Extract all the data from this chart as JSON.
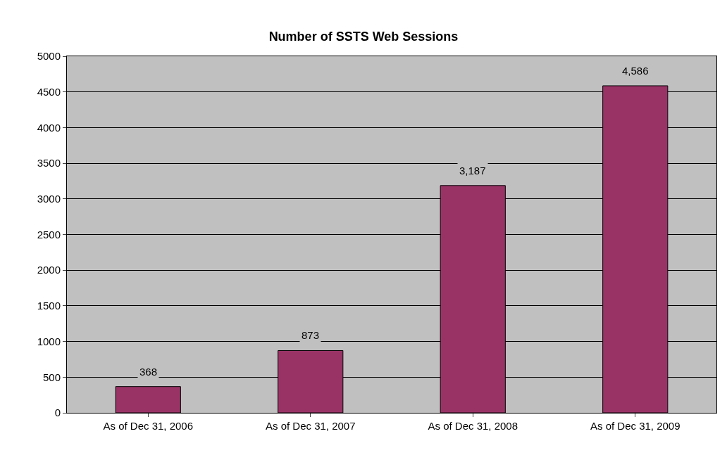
{
  "chart_data": {
    "type": "bar",
    "title": "Number of SSTS Web Sessions",
    "categories": [
      "As of Dec 31, 2006",
      "As of Dec 31, 2007",
      "As of Dec 31, 2008",
      "As of Dec 31, 2009"
    ],
    "values": [
      368,
      873,
      3187,
      4586
    ],
    "value_labels": [
      "368",
      "873",
      "3,187",
      "4,586"
    ],
    "color": "#993366",
    "ylim": [
      0,
      5000
    ],
    "yticks": [
      0,
      500,
      1000,
      1500,
      2000,
      2500,
      3000,
      3500,
      4000,
      4500,
      5000
    ],
    "grid": "y"
  }
}
